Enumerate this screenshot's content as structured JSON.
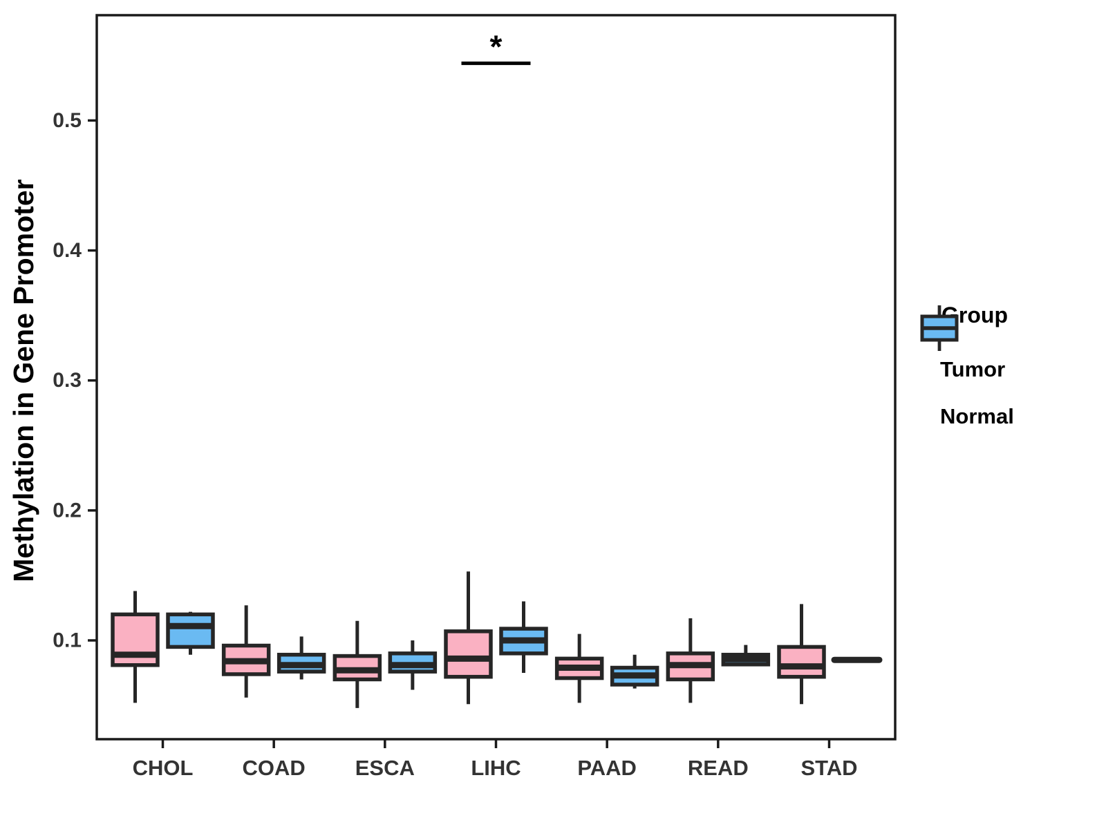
{
  "chart_data": {
    "type": "boxplot",
    "title": "",
    "xlabel": "",
    "ylabel": "Methylation in Gene Promoter",
    "categories": [
      "CHOL",
      "COAD",
      "ESCA",
      "LIHC",
      "PAAD",
      "READ",
      "STAD"
    ],
    "y_ticks": [
      0.1,
      0.2,
      0.3,
      0.4,
      0.5
    ],
    "ylim": [
      0.024,
      0.581
    ],
    "grid": "off",
    "legend_position": "right",
    "legend": {
      "title": "Group",
      "entries": [
        {
          "label": "Tumor",
          "color": "#FAB1C2"
        },
        {
          "label": "Normal",
          "color": "#6ABAF2"
        }
      ]
    },
    "series": [
      {
        "name": "Tumor",
        "color": "#FAB1C2",
        "boxes": [
          {
            "category": "CHOL",
            "whisker_low": 0.052,
            "q1": 0.081,
            "median": 0.089,
            "q3": 0.12,
            "whisker_high": 0.138
          },
          {
            "category": "COAD",
            "whisker_low": 0.056,
            "q1": 0.074,
            "median": 0.084,
            "q3": 0.096,
            "whisker_high": 0.127
          },
          {
            "category": "ESCA",
            "whisker_low": 0.048,
            "q1": 0.07,
            "median": 0.077,
            "q3": 0.088,
            "whisker_high": 0.115
          },
          {
            "category": "LIHC",
            "whisker_low": 0.051,
            "q1": 0.072,
            "median": 0.086,
            "q3": 0.107,
            "whisker_high": 0.153
          },
          {
            "category": "PAAD",
            "whisker_low": 0.052,
            "q1": 0.071,
            "median": 0.079,
            "q3": 0.086,
            "whisker_high": 0.105
          },
          {
            "category": "READ",
            "whisker_low": 0.052,
            "q1": 0.07,
            "median": 0.081,
            "q3": 0.09,
            "whisker_high": 0.117
          },
          {
            "category": "STAD",
            "whisker_low": 0.051,
            "q1": 0.072,
            "median": 0.08,
            "q3": 0.095,
            "whisker_high": 0.128
          }
        ]
      },
      {
        "name": "Normal",
        "color": "#6ABAF2",
        "boxes": [
          {
            "category": "CHOL",
            "whisker_low": 0.089,
            "q1": 0.095,
            "median": 0.111,
            "q3": 0.12,
            "whisker_high": 0.122
          },
          {
            "category": "COAD",
            "whisker_low": 0.07,
            "q1": 0.076,
            "median": 0.081,
            "q3": 0.089,
            "whisker_high": 0.103
          },
          {
            "category": "ESCA",
            "whisker_low": 0.062,
            "q1": 0.076,
            "median": 0.081,
            "q3": 0.09,
            "whisker_high": 0.1
          },
          {
            "category": "LIHC",
            "whisker_low": 0.075,
            "q1": 0.09,
            "median": 0.1,
            "q3": 0.109,
            "whisker_high": 0.13
          },
          {
            "category": "PAAD",
            "whisker_low": 0.063,
            "q1": 0.066,
            "median": 0.073,
            "q3": 0.079,
            "whisker_high": 0.089
          },
          {
            "category": "READ",
            "whisker_low": 0.0815,
            "q1": 0.0815,
            "median": 0.0855,
            "q3": 0.089,
            "whisker_high": 0.0965
          },
          {
            "category": "STAD",
            "whisker_low": 0.085,
            "q1": 0.0845,
            "median": 0.085,
            "q3": 0.0855,
            "whisker_high": 0.085
          }
        ]
      }
    ],
    "annotation": {
      "category": "LIHC",
      "label": "*",
      "line_y": 0.544
    }
  },
  "colors": {
    "box_border": "#262626",
    "panel_border": "#1A1A1A",
    "axis_text": "#333333",
    "background": "#FFFFFF"
  }
}
